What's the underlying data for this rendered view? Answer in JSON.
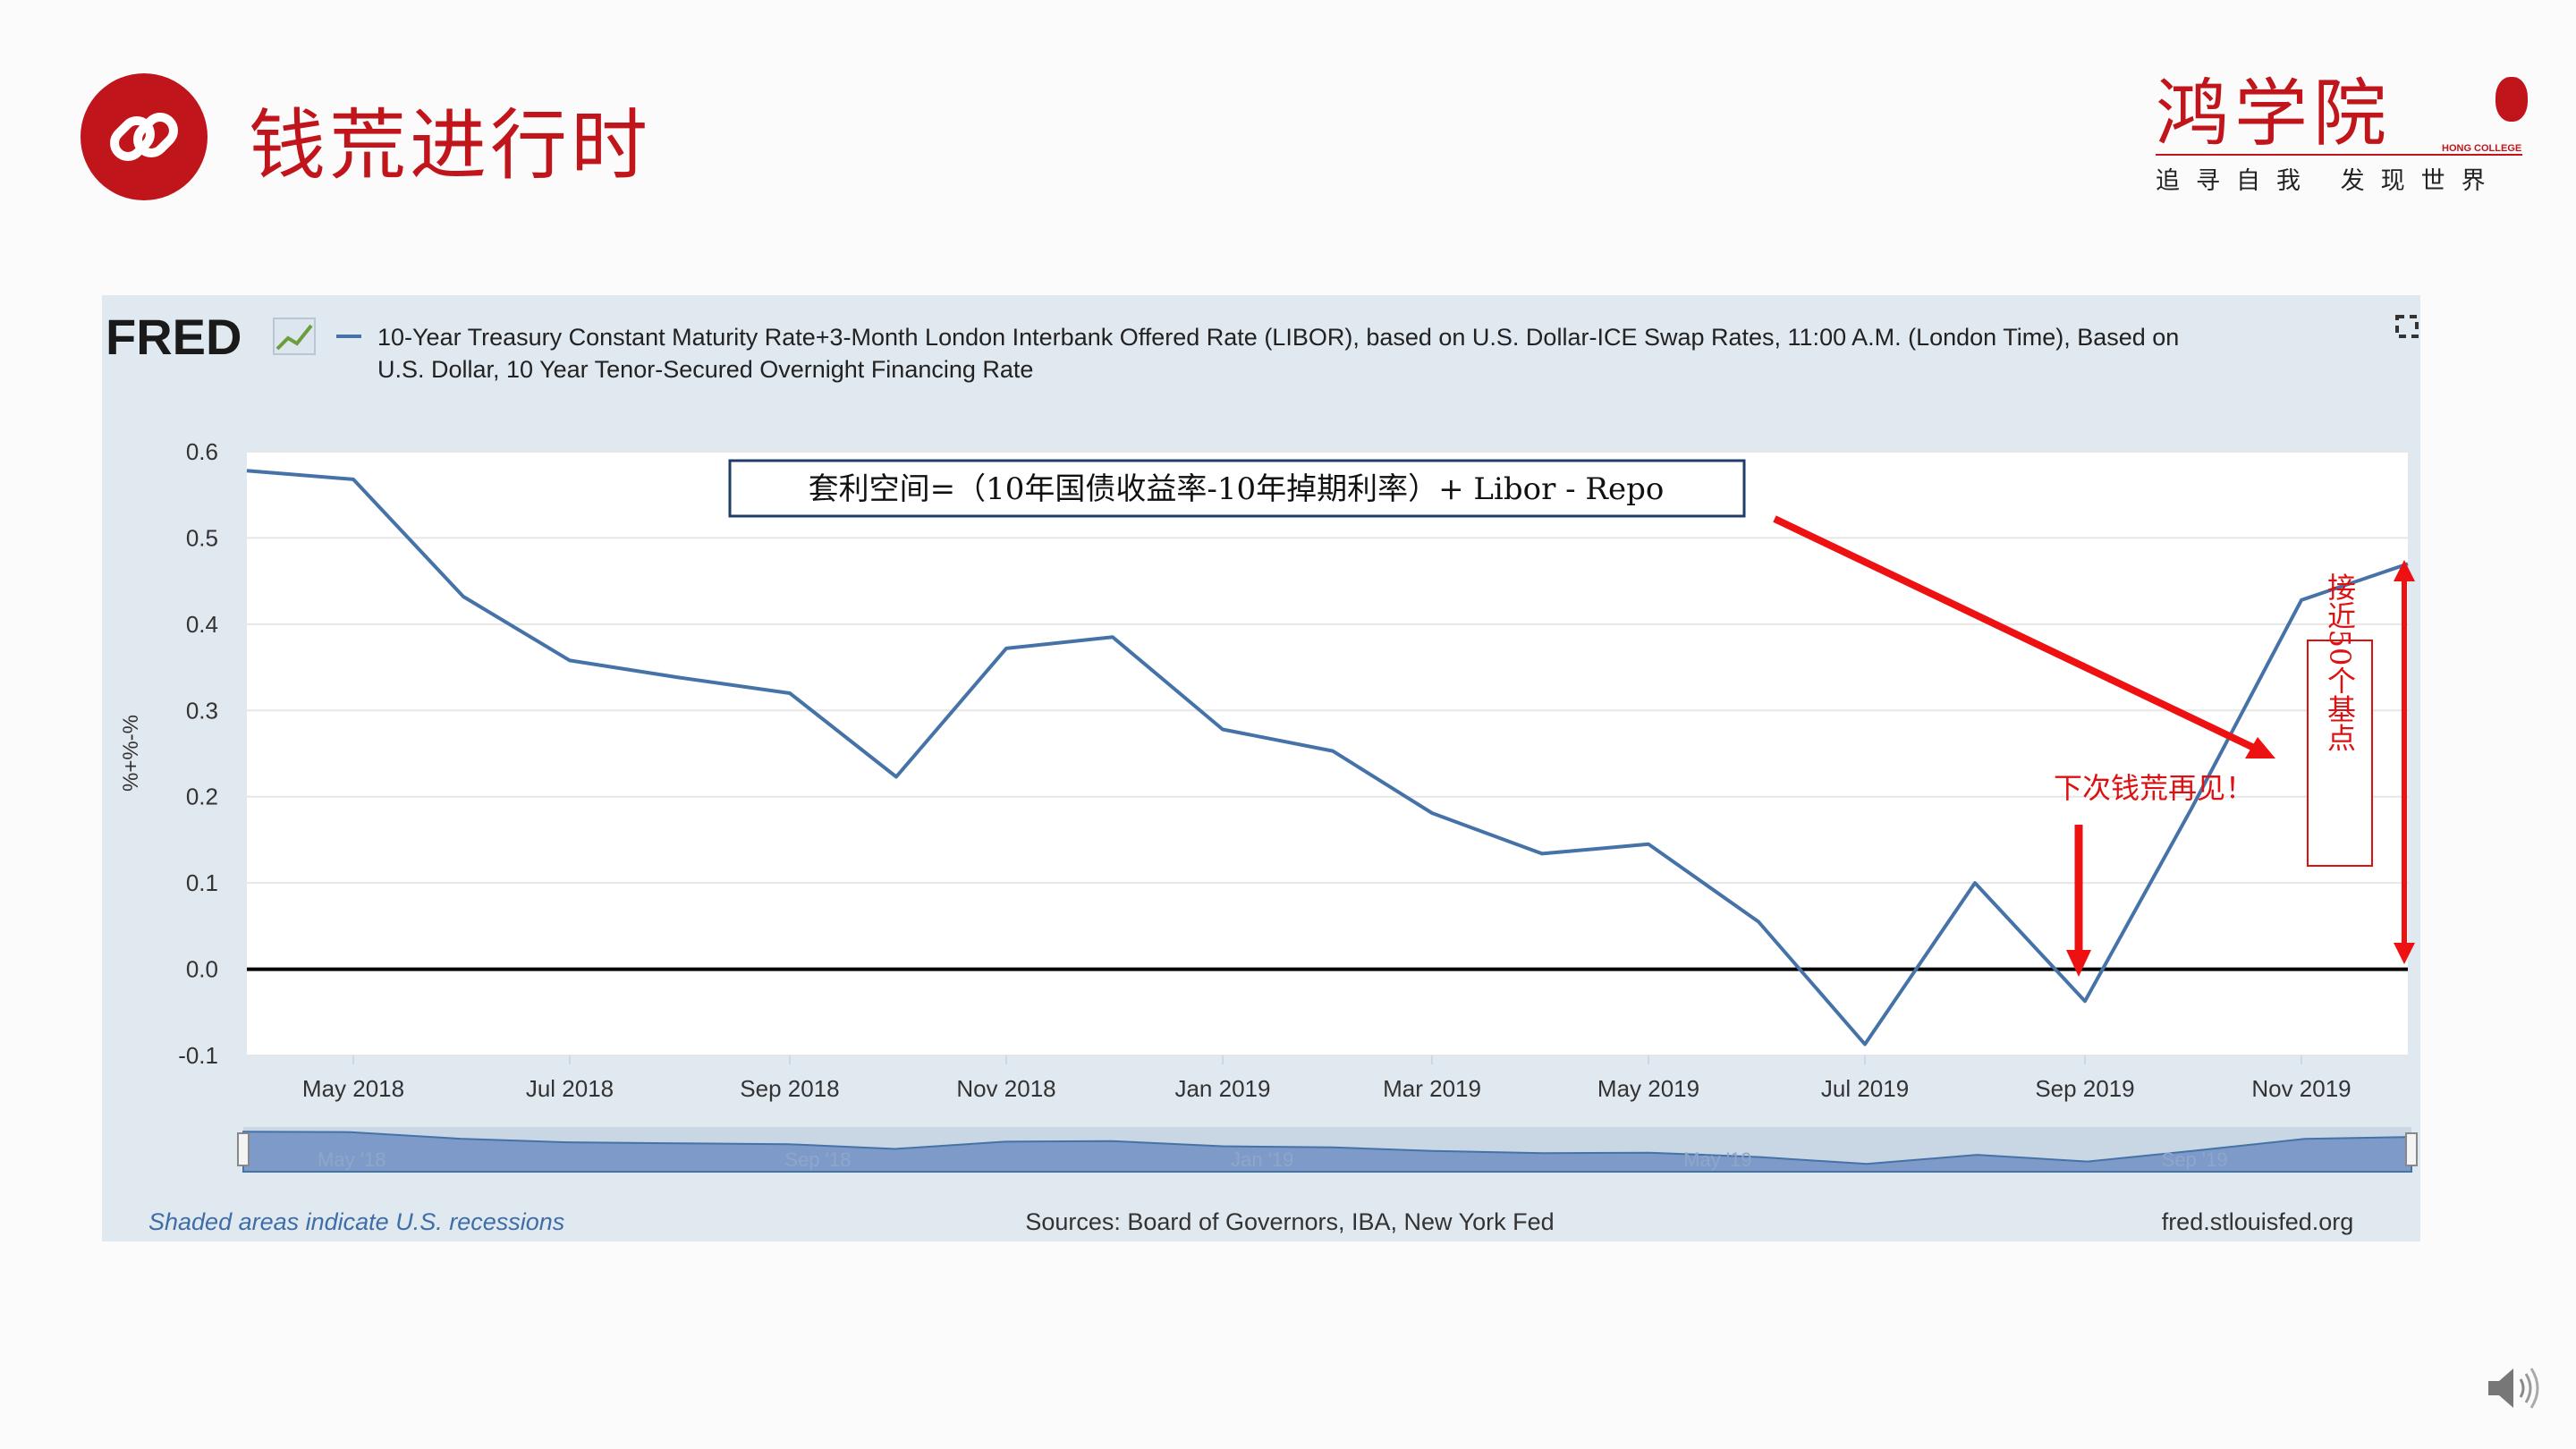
{
  "slide": {
    "title": "钱荒进行时"
  },
  "logo": {
    "name": "鸿学院",
    "subtitle": "HONG COLLEGE",
    "slogan": "追寻自我 发现世界"
  },
  "fred": {
    "brand": "FRED",
    "title_line1": "10-Year Treasury Constant Maturity Rate+3-Month London Interbank Offered Rate (LIBOR), based on U.S. Dollar-ICE Swap Rates, 11:00 A.M. (London Time), Based on",
    "title_line2": "U.S. Dollar, 10 Year Tenor-Secured Overnight Financing Rate",
    "footer_left": "Shaded areas indicate U.S. recessions",
    "footer_center": "Sources: Board of Governors, IBA, New York Fed",
    "footer_right": "fred.stlouisfed.org",
    "navigator_labels": [
      "May '18",
      "Sep '18",
      "Jan '19",
      "May '19",
      "Sep '19"
    ]
  },
  "annotations": {
    "formula": "套利空间=（10年国债收益率-10年掉期利率）+ Libor - Repo",
    "next_crunch": "下次钱荒再见！",
    "basis_points": "接近50个基点"
  },
  "colors": {
    "accent_red": "#c0151b",
    "arrow_red": "#ee1111",
    "series_blue": "#4572a7",
    "panel_bg": "#e1e9f0",
    "navigator_fill": "#7d9ac9"
  },
  "chart_data": {
    "type": "line",
    "title": "10-Year Treasury Constant Maturity Rate+3-Month London Interbank Offered Rate (LIBOR), based on U.S. Dollar-ICE Swap Rates, 11:00 A.M. (London Time), Based on U.S. Dollar, 10 Year Tenor-Secured Overnight Financing Rate",
    "ylabel": "%+%-%",
    "xlabel": "",
    "ylim": [
      -0.1,
      0.6
    ],
    "yticks": [
      0.6,
      0.5,
      0.4,
      0.3,
      0.2,
      0.1,
      0.0,
      -0.1
    ],
    "xticks": [
      "May 2018",
      "Jul 2018",
      "Sep 2018",
      "Nov 2018",
      "Jan 2019",
      "Mar 2019",
      "May 2019",
      "Jul 2019",
      "Sep 2019",
      "Nov 2019"
    ],
    "xlim": [
      "2018-04-01",
      "2019-12-01"
    ],
    "grid": true,
    "series": [
      {
        "x": [
          "2018-04-01",
          "2018-05-01",
          "2018-06-01",
          "2018-07-01",
          "2018-08-01",
          "2018-09-01",
          "2018-10-01",
          "2018-11-01",
          "2018-12-01",
          "2019-01-01",
          "2019-02-01",
          "2019-03-01",
          "2019-04-01",
          "2019-05-01",
          "2019-06-01",
          "2019-07-01",
          "2019-08-01",
          "2019-09-01",
          "2019-10-01",
          "2019-11-01",
          "2019-12-01"
        ],
        "values": [
          0.578,
          0.568,
          0.432,
          0.358,
          0.338,
          0.32,
          0.223,
          0.372,
          0.385,
          0.278,
          0.253,
          0.181,
          0.134,
          0.145,
          0.055,
          -0.087,
          0.1,
          -0.037,
          0.186,
          0.428,
          0.47
        ]
      }
    ]
  }
}
